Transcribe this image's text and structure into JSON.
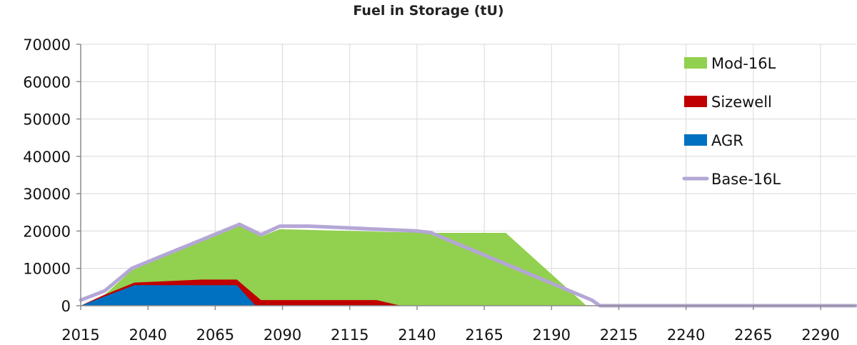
{
  "chart_data": {
    "type": "area",
    "title": "Fuel in Storage (tU)",
    "xlabel": "",
    "ylabel": "",
    "xlim": [
      2015,
      2303
    ],
    "ylim": [
      0,
      70000
    ],
    "x_ticks": [
      2015,
      2040,
      2065,
      2090,
      2115,
      2140,
      2165,
      2190,
      2215,
      2240,
      2265,
      2290
    ],
    "y_ticks": [
      0,
      10000,
      20000,
      30000,
      40000,
      50000,
      60000,
      70000
    ],
    "grid": true,
    "legend_position": "top-right",
    "series": [
      {
        "name": "Mod-16L",
        "kind": "area",
        "color": "#92D050",
        "x": [
          2015,
          2024,
          2034,
          2074,
          2082,
          2089,
          2145,
          2173,
          2203,
          2303
        ],
        "y": [
          0,
          3000,
          9500,
          21500,
          18500,
          20500,
          19500,
          19500,
          0,
          0
        ]
      },
      {
        "name": "Sizewell",
        "kind": "area",
        "color": "#C00000",
        "x": [
          2015,
          2024,
          2035,
          2060,
          2073,
          2082,
          2092,
          2125,
          2134,
          2303
        ],
        "y": [
          0,
          3000,
          6200,
          7000,
          7000,
          1500,
          1500,
          1500,
          0,
          0
        ]
      },
      {
        "name": "AGR",
        "kind": "area",
        "color": "#0070C0",
        "x": [
          2015,
          2024,
          2035,
          2073,
          2080,
          2303
        ],
        "y": [
          0,
          2500,
          5500,
          5500,
          0,
          0
        ]
      },
      {
        "name": "Base-16L",
        "kind": "line",
        "color": "#B4A7D6",
        "x": [
          2015,
          2024,
          2034,
          2074,
          2082,
          2089,
          2100,
          2140,
          2145,
          2205,
          2208,
          2303
        ],
        "y": [
          1500,
          4000,
          10000,
          21800,
          19000,
          21300,
          21300,
          20000,
          19600,
          1500,
          0,
          0
        ]
      }
    ]
  }
}
